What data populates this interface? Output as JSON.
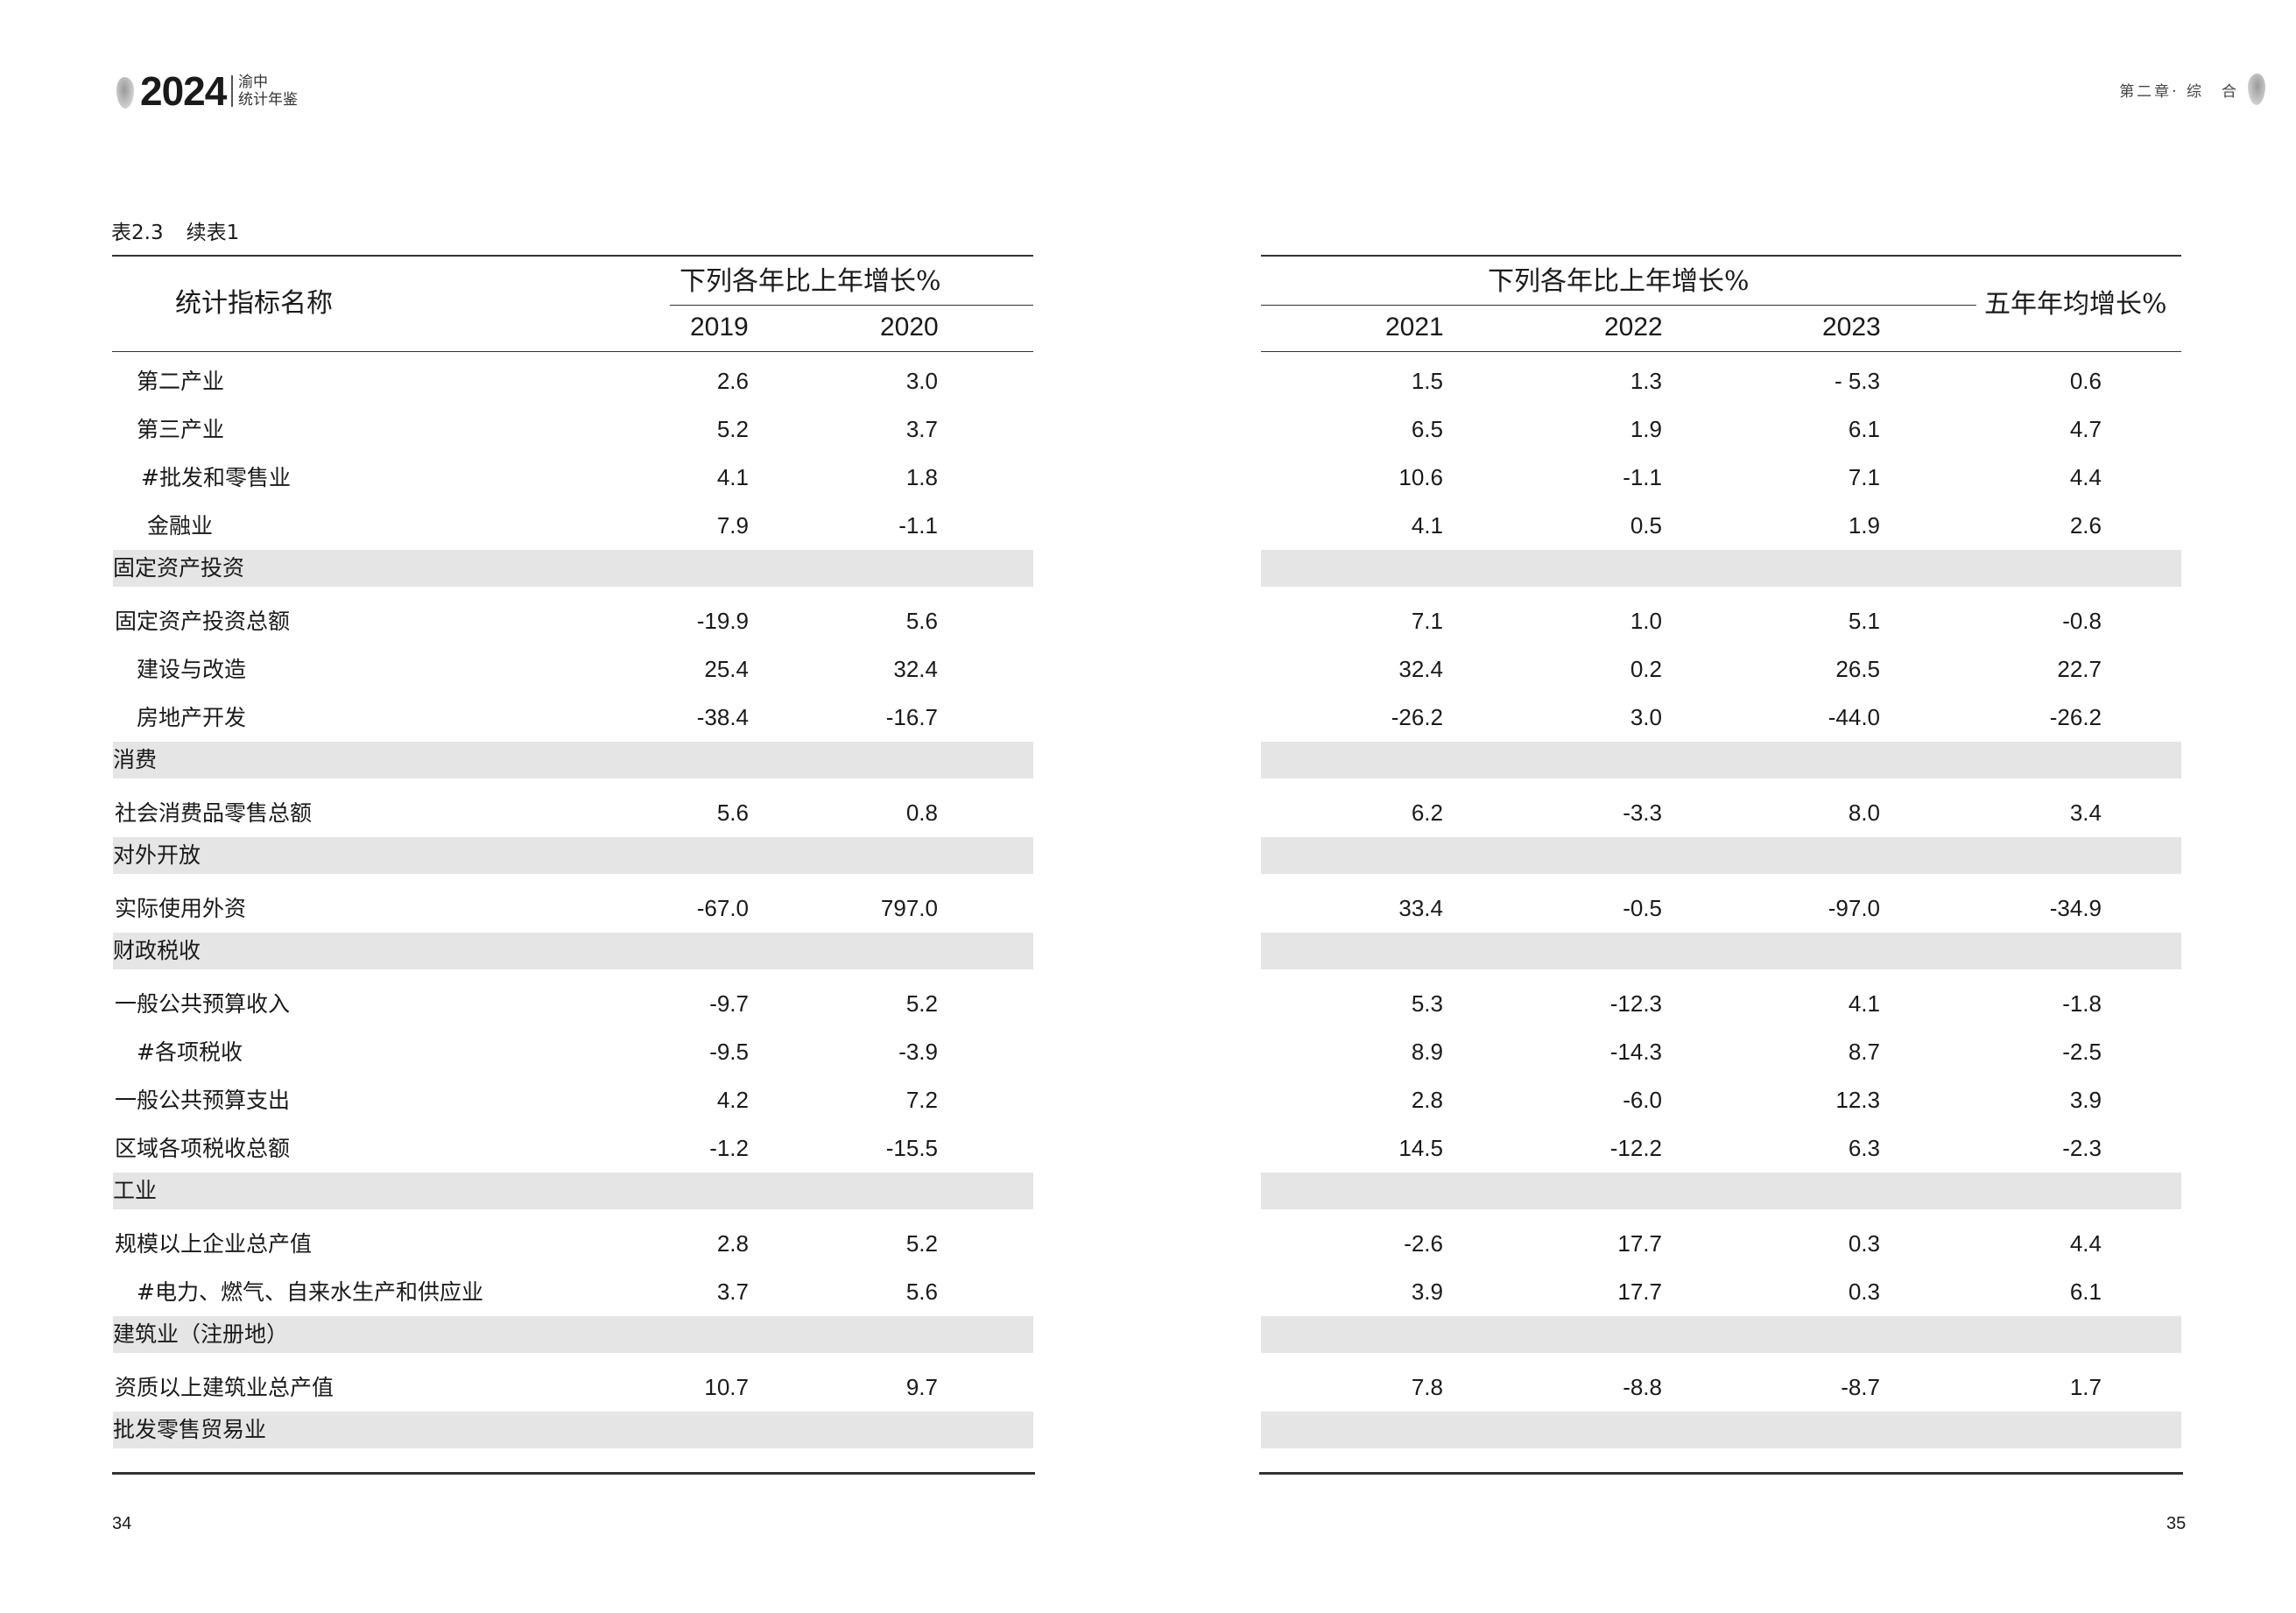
{
  "header": {
    "year": "2024",
    "subtitle_line1": "渝中",
    "subtitle_line2": "统计年鉴",
    "chapter": "第二章· 综　合"
  },
  "table": {
    "number": "表2.3",
    "continuation": "续表1",
    "columns": {
      "indicator_name": "统计指标名称",
      "growth_group_left": "下列各年比上年增长%",
      "growth_group_right": "下列各年比上年增长%",
      "five_year_avg": "五年年均增长%",
      "years_left": [
        "2019",
        "2020"
      ],
      "years_right": [
        "2021",
        "2022",
        "2023"
      ]
    },
    "rows": [
      {
        "label": "第二产业",
        "indent": 1,
        "values": [
          "2.6",
          "3.0",
          "1.5",
          "1.3",
          "- 5.3",
          "0.6"
        ]
      },
      {
        "label": "第三产业",
        "indent": 1,
        "values": [
          "5.2",
          "3.7",
          "6.5",
          "1.9",
          "6.1",
          "4.7"
        ]
      },
      {
        "label": "#批发和零售业",
        "indent": 2,
        "values": [
          "4.1",
          "1.8",
          "10.6",
          "-1.1",
          "7.1",
          "4.4"
        ]
      },
      {
        "label": "金融业",
        "indent": 3,
        "values": [
          "7.9",
          "-1.1",
          "4.1",
          "0.5",
          "1.9",
          "2.6"
        ]
      },
      {
        "label": "固定资产投资",
        "section": true
      },
      {
        "label": "固定资产投资总额",
        "indent": 0,
        "values": [
          "-19.9",
          "5.6",
          "7.1",
          "1.0",
          "5.1",
          "-0.8"
        ]
      },
      {
        "label": "建设与改造",
        "indent": 1,
        "values": [
          "25.4",
          "32.4",
          "32.4",
          "0.2",
          "26.5",
          "22.7"
        ]
      },
      {
        "label": "房地产开发",
        "indent": 1,
        "values": [
          "-38.4",
          "-16.7",
          "-26.2",
          "3.0",
          "-44.0",
          "-26.2"
        ]
      },
      {
        "label": "消费",
        "section": true
      },
      {
        "label": "社会消费品零售总额",
        "indent": 0,
        "values": [
          "5.6",
          "0.8",
          "6.2",
          "-3.3",
          "8.0",
          "3.4"
        ]
      },
      {
        "label": "对外开放",
        "section": true
      },
      {
        "label": "实际使用外资",
        "indent": 0,
        "values": [
          "-67.0",
          "797.0",
          "33.4",
          "-0.5",
          "-97.0",
          "-34.9"
        ]
      },
      {
        "label": "财政税收",
        "section": true
      },
      {
        "label": "一般公共预算收入",
        "indent": 0,
        "values": [
          "-9.7",
          "5.2",
          "5.3",
          "-12.3",
          "4.1",
          "-1.8"
        ]
      },
      {
        "label": "#各项税收",
        "indent": 1,
        "values": [
          "-9.5",
          "-3.9",
          "8.9",
          "-14.3",
          "8.7",
          "-2.5"
        ]
      },
      {
        "label": "一般公共预算支出",
        "indent": 0,
        "values": [
          "4.2",
          "7.2",
          "2.8",
          "-6.0",
          "12.3",
          "3.9"
        ]
      },
      {
        "label": "区域各项税收总额",
        "indent": 0,
        "values": [
          "-1.2",
          "-15.5",
          "14.5",
          "-12.2",
          "6.3",
          "-2.3"
        ]
      },
      {
        "label": "工业",
        "section": true
      },
      {
        "label": "规模以上企业总产值",
        "indent": 0,
        "values": [
          "2.8",
          "5.2",
          "-2.6",
          "17.7",
          "0.3",
          "4.4"
        ]
      },
      {
        "label": "#电力、燃气、自来水生产和供应业",
        "indent": 1,
        "values": [
          "3.7",
          "5.6",
          "3.9",
          "17.7",
          "0.3",
          "6.1"
        ]
      },
      {
        "label": "建筑业（注册地）",
        "section": true
      },
      {
        "label": "资质以上建筑业总产值",
        "indent": 0,
        "values": [
          "10.7",
          "9.7",
          "7.8",
          "-8.8",
          "-8.7",
          "1.7"
        ]
      },
      {
        "label": "批发零售贸易业",
        "section": true
      }
    ]
  },
  "footer": {
    "page_left": "34",
    "page_right": "35"
  },
  "colors": {
    "section_fill": "#e5e5e5",
    "rule": "#333333",
    "text": "#1a1a1a"
  }
}
